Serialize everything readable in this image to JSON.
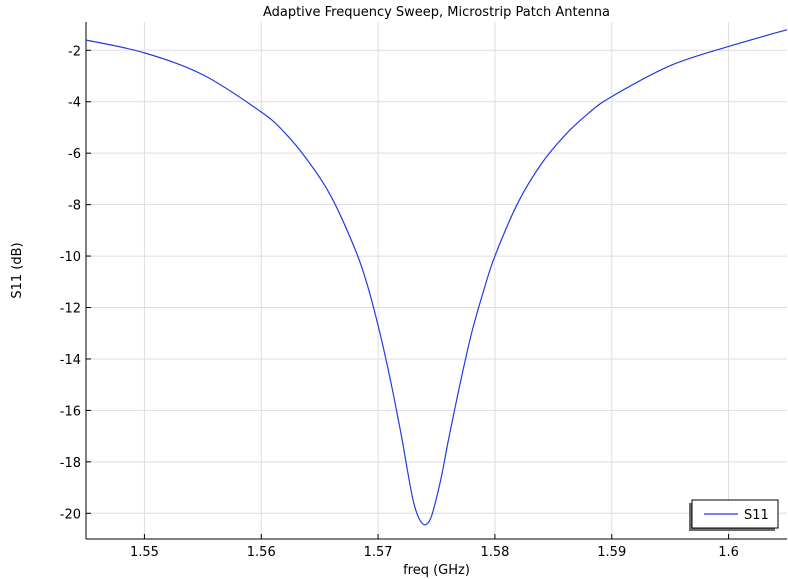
{
  "chart_data": {
    "type": "line",
    "title": "Adaptive Frequency Sweep, Microstrip Patch Antenna",
    "xlabel": "freq (GHz)",
    "ylabel": "S11 (dB)",
    "xlim": [
      1.545,
      1.605
    ],
    "ylim": [
      -21,
      -0.9
    ],
    "xticks": [
      1.55,
      1.56,
      1.57,
      1.58,
      1.59,
      1.6
    ],
    "xtick_labels": [
      "1.55",
      "1.56",
      "1.57",
      "1.58",
      "1.59",
      "1.6"
    ],
    "yticks": [
      -2,
      -4,
      -6,
      -8,
      -10,
      -12,
      -14,
      -16,
      -18,
      -20
    ],
    "ytick_labels": [
      "-2",
      "-4",
      "-6",
      "-8",
      "-10",
      "-12",
      "-14",
      "-16",
      "-18",
      "-20"
    ],
    "grid": true,
    "legend_position": "bottom-right",
    "series": [
      {
        "name": "S11",
        "color": "#1f3ce6",
        "x": [
          1.545,
          1.55,
          1.555,
          1.56,
          1.562,
          1.564,
          1.566,
          1.568,
          1.569,
          1.57,
          1.571,
          1.572,
          1.5725,
          1.573,
          1.5735,
          1.574,
          1.5745,
          1.575,
          1.5755,
          1.576,
          1.577,
          1.578,
          1.579,
          1.58,
          1.582,
          1.584,
          1.586,
          1.588,
          1.59,
          1.595,
          1.6,
          1.605
        ],
        "y": [
          -1.6,
          -2.1,
          -2.95,
          -4.4,
          -5.2,
          -6.3,
          -7.7,
          -9.7,
          -11.0,
          -12.7,
          -14.7,
          -17.0,
          -18.3,
          -19.5,
          -20.2,
          -20.45,
          -20.2,
          -19.4,
          -18.4,
          -17.2,
          -15.0,
          -13.0,
          -11.4,
          -10.0,
          -7.9,
          -6.4,
          -5.3,
          -4.45,
          -3.8,
          -2.6,
          -1.85,
          -1.2
        ]
      }
    ]
  }
}
